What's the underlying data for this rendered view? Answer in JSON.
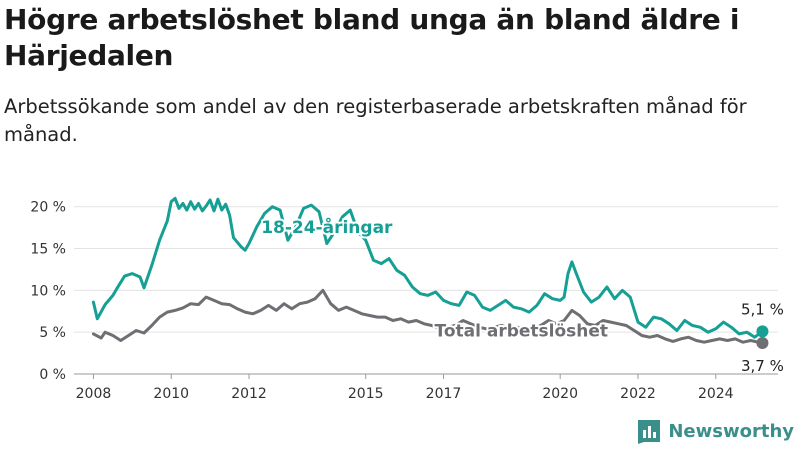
{
  "title": "Högre arbetslöshet bland unga än bland äldre i Härjedalen",
  "subtitle": "Arbetssökande som andel av den registerbaserade arbetskraften månad för månad.",
  "brand": {
    "name": "Newsworthy",
    "color": "#3a8f8a"
  },
  "chart_data": {
    "type": "line",
    "title": "Högre arbetslöshet bland unga än bland äldre i Härjedalen",
    "subtitle": "Arbetssökande som andel av den registerbaserade arbetskraften månad för månad.",
    "xlabel": "",
    "ylabel": "",
    "xlim": [
      2007.5,
      2025.6
    ],
    "ylim": [
      0,
      22
    ],
    "x_ticks": [
      {
        "value": 2008,
        "label": "2008"
      },
      {
        "value": 2010,
        "label": "2010"
      },
      {
        "value": 2012,
        "label": "2012"
      },
      {
        "value": 2015,
        "label": "2015"
      },
      {
        "value": 2017,
        "label": "2017"
      },
      {
        "value": 2020,
        "label": "2020"
      },
      {
        "value": 2022,
        "label": "2022"
      },
      {
        "value": 2024,
        "label": "2024"
      }
    ],
    "y_ticks": [
      {
        "value": 0,
        "label": "0 %"
      },
      {
        "value": 5,
        "label": "5 %"
      },
      {
        "value": 10,
        "label": "10 %"
      },
      {
        "value": 15,
        "label": "15 %"
      },
      {
        "value": 20,
        "label": "20 %"
      }
    ],
    "grid": "horizontal",
    "legend": "none",
    "series": [
      {
        "name": "18-24-åringar",
        "color": "#159f95",
        "end_label": "5,1 %",
        "points": [
          [
            2008.0,
            8.6
          ],
          [
            2008.1,
            6.6
          ],
          [
            2008.3,
            8.3
          ],
          [
            2008.5,
            9.4
          ],
          [
            2008.6,
            10.2
          ],
          [
            2008.8,
            11.7
          ],
          [
            2009.0,
            12.0
          ],
          [
            2009.2,
            11.6
          ],
          [
            2009.3,
            10.3
          ],
          [
            2009.5,
            13.0
          ],
          [
            2009.7,
            16.0
          ],
          [
            2009.9,
            18.3
          ],
          [
            2010.0,
            20.6
          ],
          [
            2010.1,
            21.0
          ],
          [
            2010.2,
            19.8
          ],
          [
            2010.3,
            20.4
          ],
          [
            2010.4,
            19.6
          ],
          [
            2010.5,
            20.6
          ],
          [
            2010.6,
            19.7
          ],
          [
            2010.7,
            20.4
          ],
          [
            2010.8,
            19.5
          ],
          [
            2010.9,
            20.1
          ],
          [
            2011.0,
            20.8
          ],
          [
            2011.1,
            19.5
          ],
          [
            2011.2,
            20.9
          ],
          [
            2011.3,
            19.6
          ],
          [
            2011.4,
            20.3
          ],
          [
            2011.5,
            19.0
          ],
          [
            2011.6,
            16.3
          ],
          [
            2011.8,
            15.2
          ],
          [
            2011.9,
            14.8
          ],
          [
            2012.0,
            15.6
          ],
          [
            2012.2,
            17.6
          ],
          [
            2012.4,
            19.2
          ],
          [
            2012.6,
            20.0
          ],
          [
            2012.8,
            19.6
          ],
          [
            2013.0,
            16.0
          ],
          [
            2013.2,
            17.6
          ],
          [
            2013.4,
            19.8
          ],
          [
            2013.6,
            20.2
          ],
          [
            2013.8,
            19.4
          ],
          [
            2014.0,
            15.6
          ],
          [
            2014.2,
            17.0
          ],
          [
            2014.4,
            18.8
          ],
          [
            2014.6,
            19.6
          ],
          [
            2014.8,
            17.0
          ],
          [
            2015.0,
            16.0
          ],
          [
            2015.2,
            13.6
          ],
          [
            2015.4,
            13.2
          ],
          [
            2015.6,
            13.8
          ],
          [
            2015.8,
            12.4
          ],
          [
            2016.0,
            11.8
          ],
          [
            2016.2,
            10.4
          ],
          [
            2016.4,
            9.6
          ],
          [
            2016.6,
            9.4
          ],
          [
            2016.8,
            9.8
          ],
          [
            2017.0,
            8.8
          ],
          [
            2017.2,
            8.4
          ],
          [
            2017.4,
            8.2
          ],
          [
            2017.6,
            9.8
          ],
          [
            2017.8,
            9.4
          ],
          [
            2018.0,
            8.0
          ],
          [
            2018.2,
            7.6
          ],
          [
            2018.4,
            8.2
          ],
          [
            2018.6,
            8.8
          ],
          [
            2018.8,
            8.0
          ],
          [
            2019.0,
            7.8
          ],
          [
            2019.2,
            7.4
          ],
          [
            2019.4,
            8.2
          ],
          [
            2019.6,
            9.6
          ],
          [
            2019.8,
            9.0
          ],
          [
            2020.0,
            8.8
          ],
          [
            2020.1,
            9.2
          ],
          [
            2020.2,
            12.0
          ],
          [
            2020.3,
            13.4
          ],
          [
            2020.4,
            12.2
          ],
          [
            2020.6,
            9.8
          ],
          [
            2020.8,
            8.6
          ],
          [
            2021.0,
            9.2
          ],
          [
            2021.2,
            10.4
          ],
          [
            2021.4,
            9.0
          ],
          [
            2021.6,
            10.0
          ],
          [
            2021.8,
            9.2
          ],
          [
            2022.0,
            6.2
          ],
          [
            2022.2,
            5.6
          ],
          [
            2022.4,
            6.8
          ],
          [
            2022.6,
            6.6
          ],
          [
            2022.8,
            6.0
          ],
          [
            2023.0,
            5.2
          ],
          [
            2023.2,
            6.4
          ],
          [
            2023.4,
            5.8
          ],
          [
            2023.6,
            5.6
          ],
          [
            2023.8,
            5.0
          ],
          [
            2024.0,
            5.4
          ],
          [
            2024.2,
            6.2
          ],
          [
            2024.4,
            5.6
          ],
          [
            2024.6,
            4.8
          ],
          [
            2024.8,
            5.0
          ],
          [
            2025.0,
            4.4
          ],
          [
            2025.2,
            5.1
          ]
        ]
      },
      {
        "name": "Total arbetslöshet",
        "color": "#6e6e73",
        "end_label": "3,7 %",
        "points": [
          [
            2008.0,
            4.8
          ],
          [
            2008.2,
            4.3
          ],
          [
            2008.3,
            5.0
          ],
          [
            2008.5,
            4.6
          ],
          [
            2008.7,
            4.0
          ],
          [
            2008.9,
            4.6
          ],
          [
            2009.1,
            5.2
          ],
          [
            2009.3,
            4.9
          ],
          [
            2009.5,
            5.8
          ],
          [
            2009.7,
            6.8
          ],
          [
            2009.9,
            7.4
          ],
          [
            2010.1,
            7.6
          ],
          [
            2010.3,
            7.9
          ],
          [
            2010.5,
            8.4
          ],
          [
            2010.7,
            8.3
          ],
          [
            2010.9,
            9.2
          ],
          [
            2011.1,
            8.8
          ],
          [
            2011.3,
            8.4
          ],
          [
            2011.5,
            8.3
          ],
          [
            2011.7,
            7.8
          ],
          [
            2011.9,
            7.4
          ],
          [
            2012.1,
            7.2
          ],
          [
            2012.3,
            7.6
          ],
          [
            2012.5,
            8.2
          ],
          [
            2012.7,
            7.6
          ],
          [
            2012.9,
            8.4
          ],
          [
            2013.1,
            7.8
          ],
          [
            2013.3,
            8.4
          ],
          [
            2013.5,
            8.6
          ],
          [
            2013.7,
            9.0
          ],
          [
            2013.9,
            10.0
          ],
          [
            2014.1,
            8.4
          ],
          [
            2014.3,
            7.6
          ],
          [
            2014.5,
            8.0
          ],
          [
            2014.7,
            7.6
          ],
          [
            2014.9,
            7.2
          ],
          [
            2015.1,
            7.0
          ],
          [
            2015.3,
            6.8
          ],
          [
            2015.5,
            6.8
          ],
          [
            2015.7,
            6.4
          ],
          [
            2015.9,
            6.6
          ],
          [
            2016.1,
            6.2
          ],
          [
            2016.3,
            6.4
          ],
          [
            2016.5,
            6.0
          ],
          [
            2016.7,
            5.8
          ],
          [
            2016.9,
            5.4
          ],
          [
            2017.1,
            5.6
          ],
          [
            2017.3,
            5.8
          ],
          [
            2017.5,
            6.4
          ],
          [
            2017.7,
            6.0
          ],
          [
            2017.9,
            5.6
          ],
          [
            2018.1,
            5.4
          ],
          [
            2018.3,
            5.6
          ],
          [
            2018.5,
            5.8
          ],
          [
            2018.7,
            5.4
          ],
          [
            2018.9,
            5.6
          ],
          [
            2019.1,
            5.2
          ],
          [
            2019.3,
            5.4
          ],
          [
            2019.5,
            5.8
          ],
          [
            2019.7,
            6.4
          ],
          [
            2019.9,
            6.0
          ],
          [
            2020.1,
            6.4
          ],
          [
            2020.3,
            7.6
          ],
          [
            2020.5,
            7.0
          ],
          [
            2020.7,
            6.0
          ],
          [
            2020.9,
            5.8
          ],
          [
            2021.1,
            6.4
          ],
          [
            2021.3,
            6.2
          ],
          [
            2021.5,
            6.0
          ],
          [
            2021.7,
            5.8
          ],
          [
            2021.9,
            5.2
          ],
          [
            2022.1,
            4.6
          ],
          [
            2022.3,
            4.4
          ],
          [
            2022.5,
            4.6
          ],
          [
            2022.7,
            4.2
          ],
          [
            2022.9,
            3.9
          ],
          [
            2023.1,
            4.2
          ],
          [
            2023.3,
            4.4
          ],
          [
            2023.5,
            4.0
          ],
          [
            2023.7,
            3.8
          ],
          [
            2023.9,
            4.0
          ],
          [
            2024.1,
            4.2
          ],
          [
            2024.3,
            4.0
          ],
          [
            2024.5,
            4.2
          ],
          [
            2024.7,
            3.8
          ],
          [
            2024.9,
            4.0
          ],
          [
            2025.2,
            3.7
          ]
        ]
      }
    ],
    "annotations": [
      {
        "text": "18-24-åringar",
        "series": 0,
        "x": 2014.0,
        "y": 17.6,
        "align": "center"
      },
      {
        "text": "Total arbetslöshet",
        "series": 1,
        "x": 2019.0,
        "y": 5.2,
        "align": "center"
      }
    ]
  }
}
